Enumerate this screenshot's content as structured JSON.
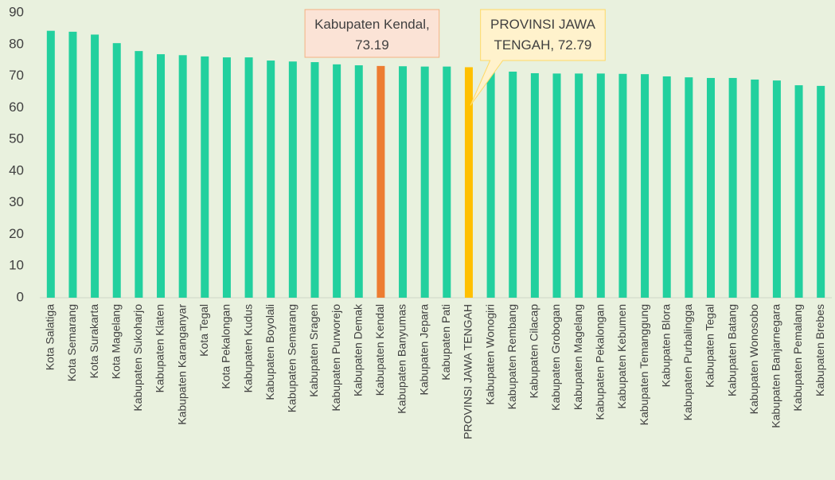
{
  "chart_data": {
    "type": "bar",
    "categories": [
      "Kota Salatiga",
      "Kota Semarang",
      "Kota Surakarta",
      "Kota Magelang",
      "Kabupaten Sukoharjo",
      "Kabupaten Klaten",
      "Kabupaten Karanganyar",
      "Kota Tegal",
      "Kota Pekalongan",
      "Kabupaten Kudus",
      "Kabupaten Boyolali",
      "Kabupaten Semarang",
      "Kabupaten Sragen",
      "Kabupaten Purworejo",
      "Kabupaten Demak",
      "Kabupaten Kendal",
      "Kabupaten Banyumas",
      "Kabupaten Jepara",
      "Kabupaten Pati",
      "PROVINSI JAWA TENGAH",
      "Kabupaten Wonogiri",
      "Kabupaten Rembang",
      "Kabupaten Cilacap",
      "Kabupaten Grobogan",
      "Kabupaten Magelang",
      "Kabupaten Pekalongan",
      "Kabupaten Kebumen",
      "Kabupaten Temanggung",
      "Kabupaten Blora",
      "Kabupaten Purbalingga",
      "Kabupaten Tegal",
      "Kabupaten Batang",
      "Kabupaten Wonosobo",
      "Kabupaten Banjarnegara",
      "Kabupaten Pemalang",
      "Kabupaten Brebes"
    ],
    "values": [
      84.3,
      84.0,
      83.1,
      80.4,
      77.9,
      76.9,
      76.6,
      76.2,
      75.9,
      75.9,
      74.9,
      74.6,
      74.4,
      73.7,
      73.4,
      73.19,
      73.1,
      73.0,
      73.0,
      72.79,
      71.9,
      71.4,
      70.9,
      70.8,
      70.8,
      70.8,
      70.7,
      70.6,
      69.9,
      69.6,
      69.4,
      69.4,
      68.9,
      68.6,
      67.1,
      66.9
    ],
    "colors": [
      "#22d09e",
      "#22d09e",
      "#22d09e",
      "#22d09e",
      "#22d09e",
      "#22d09e",
      "#22d09e",
      "#22d09e",
      "#22d09e",
      "#22d09e",
      "#22d09e",
      "#22d09e",
      "#22d09e",
      "#22d09e",
      "#22d09e",
      "#ed7d31",
      "#22d09e",
      "#22d09e",
      "#22d09e",
      "#ffc000",
      "#22d09e",
      "#22d09e",
      "#22d09e",
      "#22d09e",
      "#22d09e",
      "#22d09e",
      "#22d09e",
      "#22d09e",
      "#22d09e",
      "#22d09e",
      "#22d09e",
      "#22d09e",
      "#22d09e",
      "#22d09e",
      "#22d09e",
      "#22d09e"
    ],
    "value_labels": [
      null,
      null,
      null,
      null,
      null,
      null,
      null,
      null,
      null,
      null,
      null,
      null,
      null,
      null,
      null,
      [
        "Kabupaten Kendal,",
        "73.19"
      ],
      null,
      null,
      null,
      [
        "PROVINSI JAWA",
        "TENGAH, 72.79"
      ],
      null,
      null,
      null,
      null,
      null,
      null,
      null,
      null,
      null,
      null,
      null,
      null,
      null,
      null,
      null,
      null
    ],
    "ylim": [
      0,
      90
    ],
    "yticks": [
      0,
      10,
      20,
      30,
      40,
      50,
      60,
      70,
      80,
      90
    ]
  }
}
